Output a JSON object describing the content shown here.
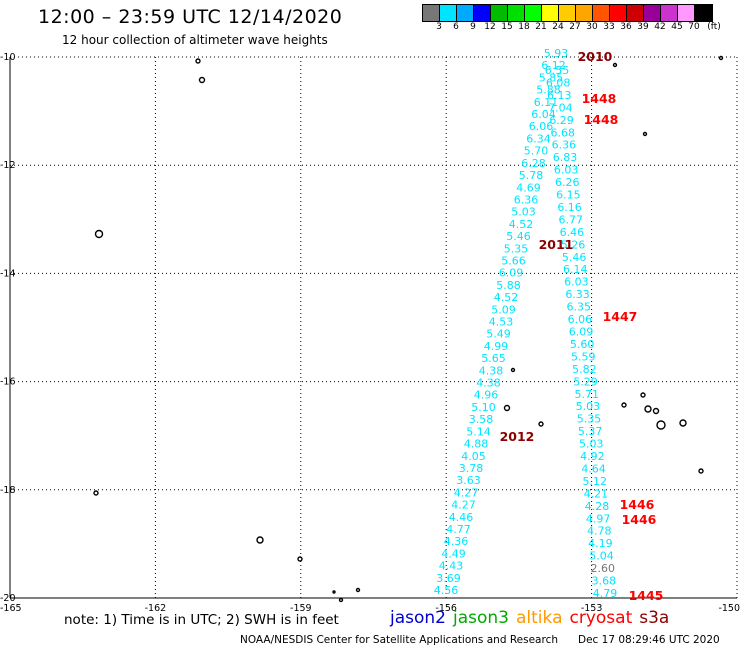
{
  "header": {
    "title": "12:00 – 23:59 UTC 12/14/2020",
    "subtitle": "12 hour collection of altimeter wave heights"
  },
  "colorbar": {
    "unit": "(ft)",
    "labels": [
      "3",
      "6",
      "9",
      "12",
      "15",
      "18",
      "21",
      "24",
      "27",
      "30",
      "33",
      "36",
      "39",
      "42",
      "45",
      "70"
    ],
    "colors": [
      "#777777",
      "#00e5ff",
      "#00aaff",
      "#0000ff",
      "#00bb00",
      "#00e000",
      "#00ff00",
      "#ffff00",
      "#ffcc00",
      "#ffa500",
      "#ff5500",
      "#ff0000",
      "#cc0000",
      "#990099",
      "#cc33cc",
      "#ff99ff",
      "#000000"
    ]
  },
  "chart_data": {
    "type": "scatter",
    "title": "12:00 – 23:59 UTC 12/14/2020",
    "subtitle": "12 hour collection of altimeter wave heights",
    "x_axis": {
      "ticks": [
        -165,
        -162,
        -159,
        -156,
        -153,
        -150
      ],
      "range": [
        -165,
        -150
      ]
    },
    "y_axis": {
      "ticks": [
        -10,
        -12,
        -14,
        -16,
        -18,
        -20
      ],
      "range": [
        -20,
        -10
      ]
    },
    "grid": true,
    "tracks": [
      {
        "name": "left-track",
        "color": "#00e5ff",
        "values": [
          "5.93",
          "6.12",
          "5.85",
          "5.88",
          "6.11",
          "6.04",
          "6.06",
          "6.34",
          "5.70",
          "6.28",
          "5.78",
          "4.69",
          "6.36",
          "5.03",
          "4.52",
          "5.46",
          "5.35",
          "5.66",
          "6.09",
          "5.88",
          "4.52",
          "5.09",
          "4.53",
          "5.49",
          "4.99",
          "5.65",
          "4.38",
          "4.38",
          "4.96",
          "5.10",
          "3.58",
          "5.14",
          "4.88",
          "4.05",
          "3.78",
          "3.63",
          "4.27",
          "4.27",
          "4.46",
          "4.77",
          "4.36",
          "4.49",
          "4.43",
          "3.69",
          "4.56"
        ]
      },
      {
        "name": "right-track",
        "color": "#00e5ff",
        "values": [
          "6.55",
          "6.08",
          "6.13",
          "7.04",
          "6.29",
          "6.68",
          "6.36",
          "6.83",
          "6.03",
          "6.26",
          "6.15",
          "6.16",
          "6.77",
          "6.46",
          "5.26",
          "5.46",
          "6.14",
          "6.03",
          "6.33",
          "6.35",
          "6.06",
          "6.09",
          "5.60",
          "5.59",
          "5.82",
          "5.29",
          "5.71",
          "5.03",
          "5.35",
          "5.37",
          "5.03",
          "4.92",
          "4.64",
          "5.12",
          "4.21",
          "4.28",
          "4.97",
          "4.78",
          "4.19",
          "5.04",
          "2.60",
          "3.68",
          "4.79"
        ]
      }
    ],
    "pass_labels": [
      {
        "text": "2010",
        "color": "#8b0000"
      },
      {
        "text": "1448",
        "color": "#ff0000"
      },
      {
        "text": "1448",
        "color": "#ff0000"
      },
      {
        "text": "2011",
        "color": "#8b0000"
      },
      {
        "text": "1447",
        "color": "#ff0000"
      },
      {
        "text": "2012",
        "color": "#8b0000"
      },
      {
        "text": "1446",
        "color": "#ff0000"
      },
      {
        "text": "1446",
        "color": "#ff0000"
      },
      {
        "text": "1445",
        "color": "#ff0000"
      }
    ]
  },
  "footer": {
    "note": "note: 1) Time is in UTC; 2) SWH is in feet",
    "missions": [
      {
        "name": "jason2",
        "color": "#0000cc"
      },
      {
        "name": "jason3",
        "color": "#00aa00"
      },
      {
        "name": "altika",
        "color": "#ff9900"
      },
      {
        "name": "cryosat",
        "color": "#ff0000"
      },
      {
        "name": "s3a",
        "color": "#8b0000"
      }
    ],
    "credit": "NOAA/NESDIS Center for Satellite Applications and Research",
    "timestamp": "Dec 17 08:29:46 UTC 2020"
  }
}
